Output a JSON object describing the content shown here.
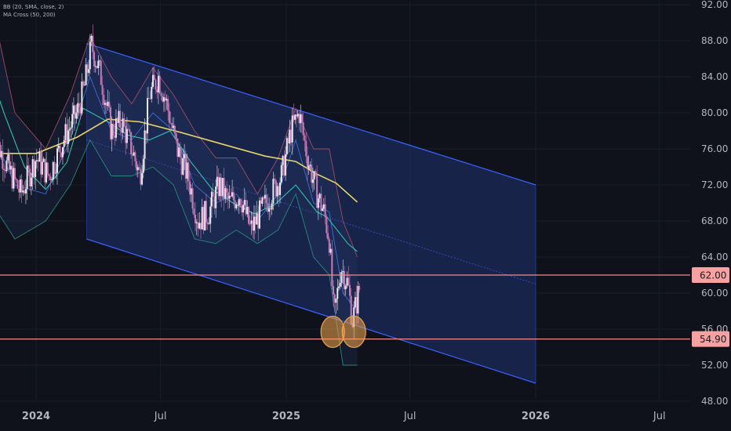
{
  "indicators": {
    "bb": "BB (20, SMA, close, 2)",
    "ma_cross": "MA Cross (50, 200)"
  },
  "colors": {
    "background": "#0f121b",
    "channel_fill": "#1b2a5a",
    "channel_line": "#3a62ff",
    "candle_up": "#e8e8ee",
    "candle_down": "#c77ab8",
    "ma200": "#e6d36a",
    "ma50": "#2fc2b0",
    "bb_band": "#b5546c",
    "bb_basis": "#3c6fd8",
    "level_line": "#f28b8b",
    "level_label_bg": "#f9a1a1",
    "circle_fill": "#f2a54a",
    "axis_text": "#b2b5be"
  },
  "chart_data": {
    "type": "candlestick",
    "y_axis": {
      "ticks": [
        "92.00",
        "88.00",
        "84.00",
        "80.00",
        "76.00",
        "72.00",
        "68.00",
        "64.00",
        "60.00",
        "56.00",
        "52.00",
        "48.00"
      ],
      "range": [
        47.8,
        92.4
      ],
      "side": "right"
    },
    "x_axis": {
      "ticks": [
        "2024",
        "Jul",
        "2025",
        "Jul",
        "2026",
        "Jul"
      ],
      "tick_dates": [
        "2024-01-01",
        "2024-07-01",
        "2025-01-01",
        "2025-07-01",
        "2026-01-01",
        "2026-07-01"
      ],
      "range": [
        "2023-10-28",
        "2026-09-25"
      ]
    },
    "price_levels": [
      {
        "value": 62.0,
        "label": "62.00"
      },
      {
        "value": 54.9,
        "label": "54.90"
      }
    ],
    "descending_channel": {
      "start_date": "2024-03-15",
      "end_date": "2026-01-01",
      "upper": [
        87.7,
        72.0
      ],
      "middle": [
        77.0,
        61.0
      ],
      "lower": [
        66.0,
        50.0
      ]
    },
    "highlight_circles": [
      {
        "date": "2025-03-10",
        "value": 55.7
      },
      {
        "date": "2025-04-10",
        "value": 55.7
      }
    ],
    "ma200": {
      "name": "",
      "points": [
        [
          "2023-10-28",
          75.5
        ],
        [
          "2024-01-01",
          75.5
        ],
        [
          "2024-03-01",
          77.3
        ],
        [
          "2024-04-15",
          79.3
        ],
        [
          "2024-06-01",
          79.0
        ],
        [
          "2024-08-01",
          77.8
        ],
        [
          "2024-10-01",
          76.5
        ],
        [
          "2024-12-01",
          75.2
        ],
        [
          "2025-01-15",
          74.6
        ],
        [
          "2025-02-15",
          73.2
        ],
        [
          "2025-03-15",
          72.2
        ],
        [
          "2025-04-15",
          70.1
        ]
      ]
    },
    "ma50": {
      "name": "",
      "points": [
        [
          "2023-10-28",
          84.0
        ],
        [
          "2023-11-15",
          80.0
        ],
        [
          "2023-12-15",
          74.0
        ],
        [
          "2024-01-15",
          71.5
        ],
        [
          "2024-02-15",
          74.5
        ],
        [
          "2024-03-10",
          80.5
        ],
        [
          "2024-04-15",
          79.0
        ],
        [
          "2024-05-15",
          77.5
        ],
        [
          "2024-06-15",
          77.0
        ],
        [
          "2024-07-15",
          78.0
        ],
        [
          "2024-08-15",
          74.5
        ],
        [
          "2024-09-15",
          71.5
        ],
        [
          "2024-10-15",
          70.0
        ],
        [
          "2024-11-15",
          68.8
        ],
        [
          "2024-12-15",
          69.8
        ],
        [
          "2025-01-15",
          72.0
        ],
        [
          "2025-02-15",
          69.0
        ],
        [
          "2025-03-01",
          68.5
        ],
        [
          "2025-04-01",
          65.5
        ],
        [
          "2025-04-15",
          64.6
        ]
      ]
    },
    "bb_basis": {
      "name": "",
      "points": [
        [
          "2023-10-28",
          78
        ],
        [
          "2023-12-01",
          72
        ],
        [
          "2024-01-15",
          71
        ],
        [
          "2024-02-20",
          77
        ],
        [
          "2024-03-20",
          84
        ],
        [
          "2024-04-20",
          78
        ],
        [
          "2024-05-20",
          77
        ],
        [
          "2024-06-20",
          80
        ],
        [
          "2024-07-20",
          78
        ],
        [
          "2024-08-20",
          72
        ],
        [
          "2024-09-20",
          70
        ],
        [
          "2024-10-20",
          71
        ],
        [
          "2024-11-20",
          68
        ],
        [
          "2024-12-20",
          71
        ],
        [
          "2025-01-15",
          77
        ],
        [
          "2025-02-10",
          70
        ],
        [
          "2025-03-05",
          69
        ],
        [
          "2025-03-25",
          60
        ],
        [
          "2025-04-15",
          58
        ]
      ]
    },
    "bb_upper": {
      "name": "",
      "points": [
        [
          "2023-10-28",
          92
        ],
        [
          "2023-12-01",
          80
        ],
        [
          "2024-01-15",
          76
        ],
        [
          "2024-02-20",
          82
        ],
        [
          "2024-03-20",
          88.5
        ],
        [
          "2024-04-20",
          84
        ],
        [
          "2024-05-20",
          81
        ],
        [
          "2024-06-20",
          85
        ],
        [
          "2024-07-20",
          82
        ],
        [
          "2024-08-20",
          78
        ],
        [
          "2024-09-20",
          75
        ],
        [
          "2024-10-20",
          75
        ],
        [
          "2024-11-20",
          71
        ],
        [
          "2024-12-20",
          75
        ],
        [
          "2025-01-15",
          80.5
        ],
        [
          "2025-02-10",
          76
        ],
        [
          "2025-03-05",
          76
        ],
        [
          "2025-03-25",
          68
        ],
        [
          "2025-04-15",
          64
        ]
      ]
    },
    "bb_lower": {
      "name": "",
      "points": [
        [
          "2023-10-28",
          70
        ],
        [
          "2023-12-01",
          66
        ],
        [
          "2024-01-15",
          68
        ],
        [
          "2024-02-20",
          72
        ],
        [
          "2024-03-20",
          77
        ],
        [
          "2024-04-20",
          73
        ],
        [
          "2024-05-20",
          73
        ],
        [
          "2024-06-20",
          74
        ],
        [
          "2024-07-20",
          72
        ],
        [
          "2024-08-20",
          66
        ],
        [
          "2024-09-20",
          65.5
        ],
        [
          "2024-10-20",
          67
        ],
        [
          "2024-11-20",
          65.5
        ],
        [
          "2024-12-20",
          67
        ],
        [
          "2025-01-15",
          71
        ],
        [
          "2025-02-10",
          64
        ],
        [
          "2025-03-05",
          62
        ],
        [
          "2025-03-25",
          52
        ],
        [
          "2025-04-15",
          52
        ]
      ]
    },
    "close_path": [
      [
        "2023-10-28",
        78
      ],
      [
        "2023-11-20",
        74
      ],
      [
        "2023-12-10",
        71
      ],
      [
        "2024-01-01",
        75
      ],
      [
        "2024-01-20",
        73
      ],
      [
        "2024-02-10",
        77
      ],
      [
        "2024-03-01",
        80
      ],
      [
        "2024-03-12",
        83
      ],
      [
        "2024-03-22",
        87.5
      ],
      [
        "2024-04-05",
        84
      ],
      [
        "2024-04-20",
        78
      ],
      [
        "2024-05-05",
        79
      ],
      [
        "2024-05-20",
        76
      ],
      [
        "2024-06-01",
        73
      ],
      [
        "2024-06-15",
        82
      ],
      [
        "2024-06-28",
        84
      ],
      [
        "2024-07-10",
        81
      ],
      [
        "2024-07-25",
        76
      ],
      [
        "2024-08-10",
        73
      ],
      [
        "2024-08-25",
        68
      ],
      [
        "2024-09-10",
        69
      ],
      [
        "2024-09-25",
        72
      ],
      [
        "2024-10-10",
        70
      ],
      [
        "2024-10-25",
        71
      ],
      [
        "2024-11-10",
        67
      ],
      [
        "2024-11-25",
        69
      ],
      [
        "2024-12-10",
        71
      ],
      [
        "2024-12-25",
        73
      ],
      [
        "2025-01-08",
        78
      ],
      [
        "2025-01-20",
        80
      ],
      [
        "2025-02-01",
        75
      ],
      [
        "2025-02-15",
        71
      ],
      [
        "2025-02-25",
        69
      ],
      [
        "2025-03-05",
        66
      ],
      [
        "2025-03-12",
        57
      ],
      [
        "2025-03-22",
        63
      ],
      [
        "2025-04-01",
        61
      ],
      [
        "2025-04-08",
        57
      ],
      [
        "2025-04-14",
        59
      ],
      [
        "2025-04-18",
        60.5
      ]
    ]
  }
}
